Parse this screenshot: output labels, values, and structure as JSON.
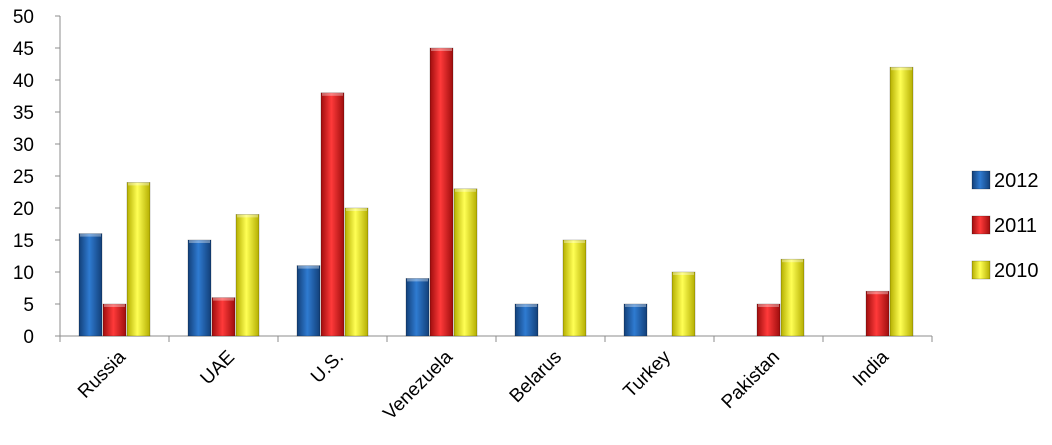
{
  "chart_data": {
    "type": "bar",
    "categories": [
      "Russia",
      "UAE",
      "U.S.",
      "Venezuela",
      "Belarus",
      "Turkey",
      "Pakistan",
      "India"
    ],
    "series": [
      {
        "name": "2012",
        "color": "#1f5fae",
        "values": [
          16,
          15,
          11,
          9,
          5,
          5,
          null,
          null
        ]
      },
      {
        "name": "2011",
        "color": "#e61f1f",
        "values": [
          5,
          6,
          38,
          45,
          null,
          null,
          5,
          7
        ]
      },
      {
        "name": "2010",
        "color": "#f2ee10",
        "values": [
          24,
          19,
          20,
          23,
          15,
          10,
          12,
          42
        ]
      }
    ],
    "ylim": [
      0,
      50
    ],
    "yticks": [
      0,
      5,
      10,
      15,
      20,
      25,
      30,
      35,
      40,
      45,
      50
    ],
    "legend_position": "right",
    "grid": false
  }
}
